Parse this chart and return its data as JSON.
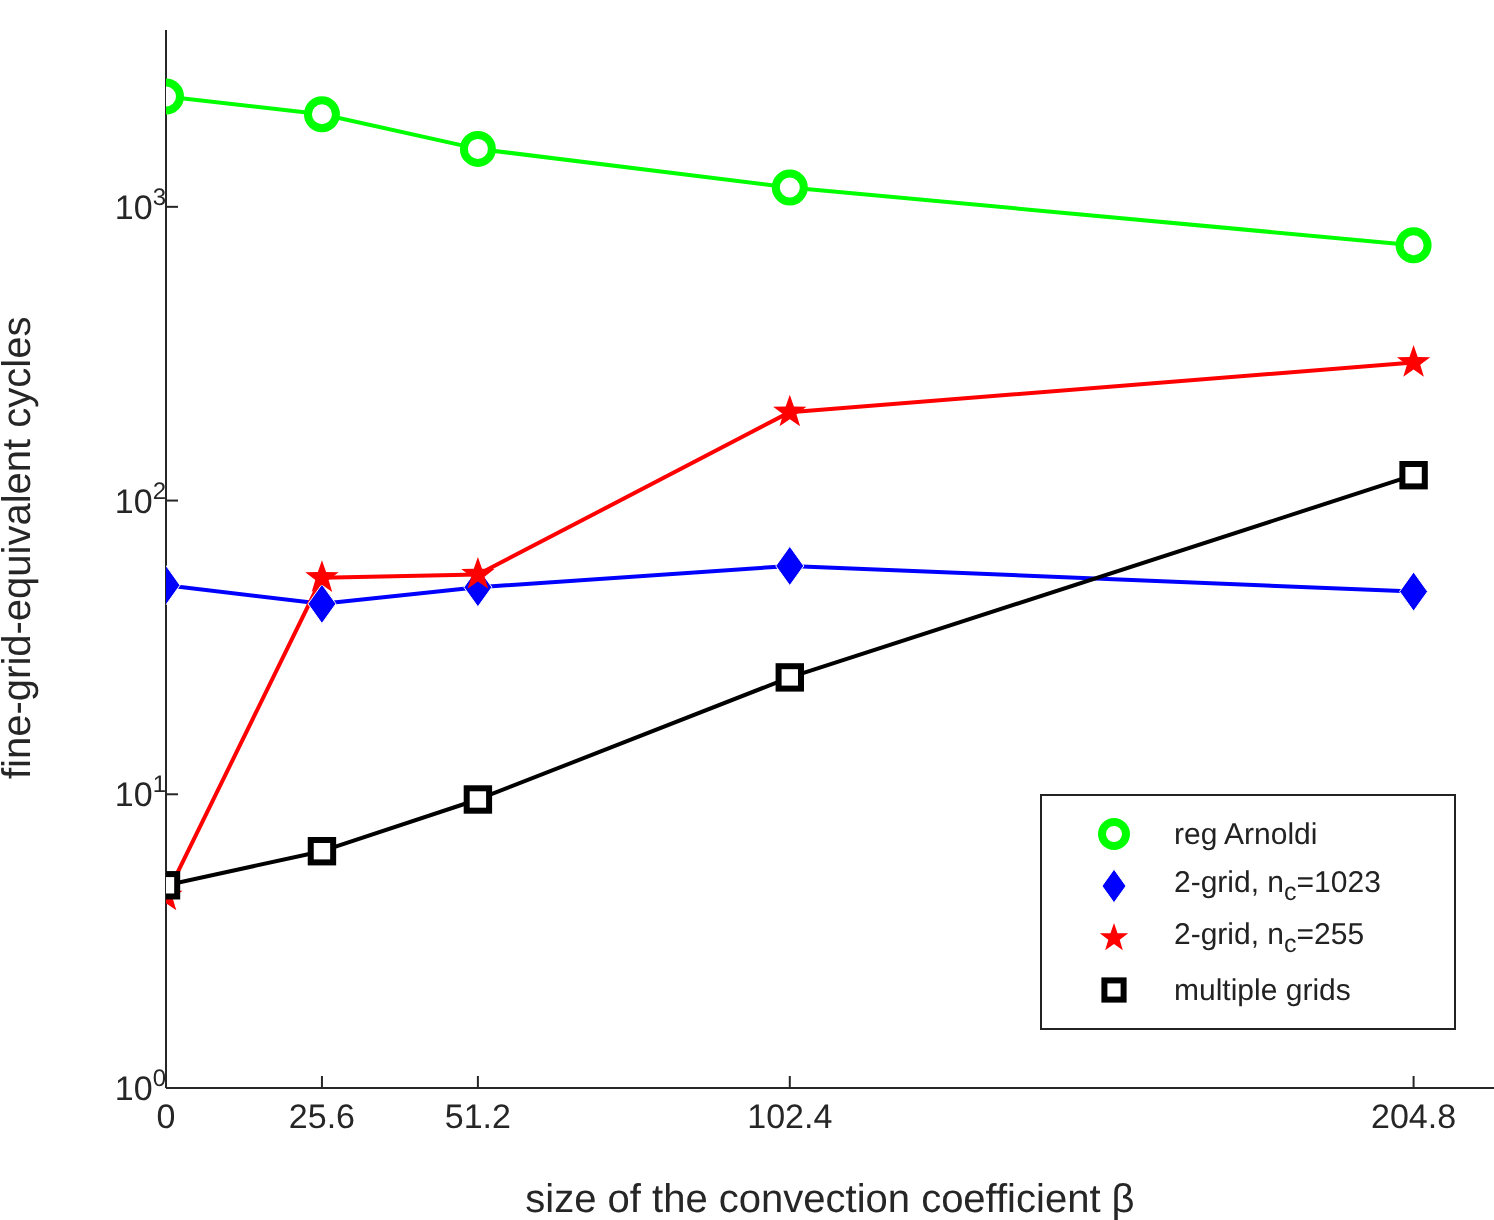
{
  "chart_data": {
    "type": "line",
    "xlabel": "size of the convection coefficient β",
    "ylabel": "fine-grid-equivalent cycles",
    "x": [
      0,
      25.6,
      51.2,
      102.4,
      204.8
    ],
    "xlim": [
      0,
      218
    ],
    "xticks": [
      0,
      25.6,
      51.2,
      102.4,
      204.8
    ],
    "ylim": [
      1,
      4000
    ],
    "yticks": [
      {
        "value": 1,
        "label": "10$^{0}$"
      },
      {
        "value": 10,
        "label": "10$^{1}$"
      },
      {
        "value": 100,
        "label": "10$^{2}$"
      },
      {
        "value": 1000,
        "label": "10$^{3}$"
      }
    ],
    "log": "y",
    "grid": false,
    "legend": "bottom right",
    "series": [
      {
        "name": "reg Arnoldi",
        "color": "#00ff00",
        "marker": "circle",
        "values": [
          2375,
          2066,
          1575,
          1164,
          740
        ]
      },
      {
        "name": "2-grid, n$_{c}$=1023",
        "color": "#0000ff",
        "marker": "diamond",
        "values": [
          51.5,
          44.5,
          50.7,
          59.9,
          49
        ]
      },
      {
        "name": "2-grid, n$_{c}$=255",
        "color": "#ff0000",
        "marker": "star",
        "values": [
          4.5,
          54.6,
          56,
          200,
          295
        ]
      },
      {
        "name": "multiple grids",
        "color": "#000000",
        "marker": "square",
        "values": [
          4.9,
          6.4,
          9.6,
          25,
          122
        ]
      }
    ]
  }
}
